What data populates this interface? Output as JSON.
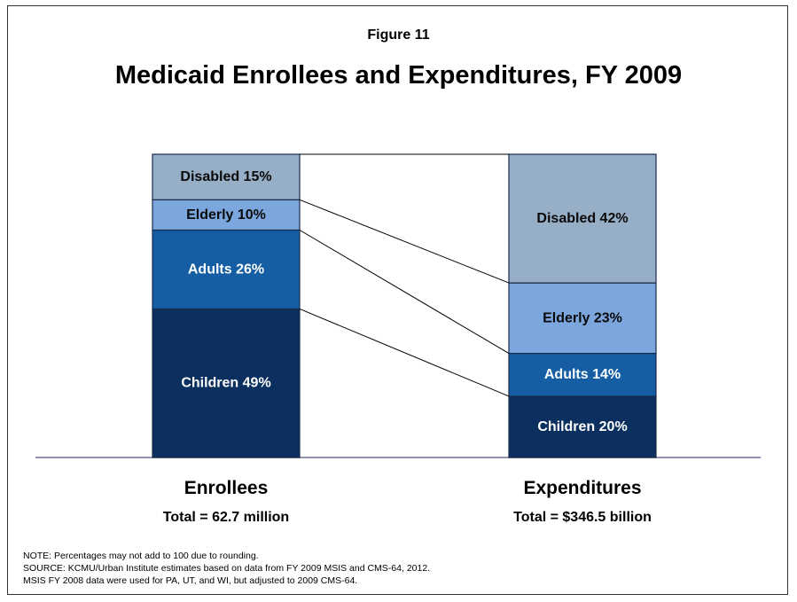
{
  "figure_label": "Figure 11",
  "chart_data": {
    "type": "bar",
    "title": "Medicaid Enrollees and Expenditures, FY 2009",
    "stacked": true,
    "percent": true,
    "categories": [
      "Enrollees",
      "Expenditures"
    ],
    "category_totals": [
      "Total = 62.7 million",
      "Total = $346.5 billion"
    ],
    "series": [
      {
        "name": "Children",
        "values": [
          49,
          20
        ],
        "color": "#0B2F5F"
      },
      {
        "name": "Adults",
        "values": [
          26,
          14
        ],
        "color": "#155EA4"
      },
      {
        "name": "Elderly",
        "values": [
          10,
          23
        ],
        "color": "#7BA6DE"
      },
      {
        "name": "Disabled",
        "values": [
          15,
          42
        ],
        "color": "#96AEC6"
      }
    ],
    "label_colors": {
      "Children": "#ffffff",
      "Adults": "#ffffff",
      "Elderly": "#0a0a0a",
      "Disabled": "#0a0a0a"
    },
    "ylim": [
      0,
      100
    ]
  },
  "notes": [
    "NOTE: Percentages may not add to 100 due to rounding.",
    "SOURCE: KCMU/Urban Institute estimates based on data from FY 2009 MSIS and CMS-64, 2012.",
    "MSIS FY 2008 data were used for PA, UT, and WI, but adjusted to 2009 CMS-64."
  ]
}
